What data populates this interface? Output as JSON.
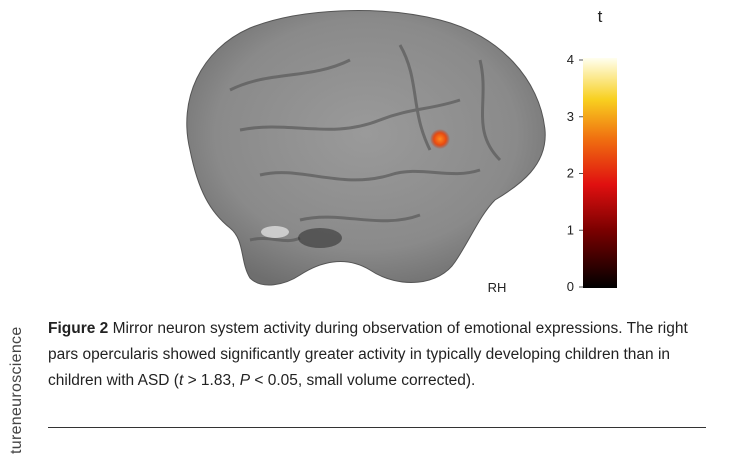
{
  "side_text": "tureneuroscience",
  "figure": {
    "hemisphere": "RH",
    "colorbar": {
      "label": "t",
      "range": [
        0,
        4
      ],
      "ticks": [
        0,
        1,
        2,
        3,
        4
      ]
    }
  },
  "caption": {
    "label": "Figure 2",
    "parts": [
      " Mirror neuron system activity during observation of emotional expressions. The right pars opercularis showed significantly greater activity in typically developing children than in children with ASD (",
      "t",
      " > 1.83, ",
      "P",
      " < 0.05, small volume corrected)."
    ]
  }
}
